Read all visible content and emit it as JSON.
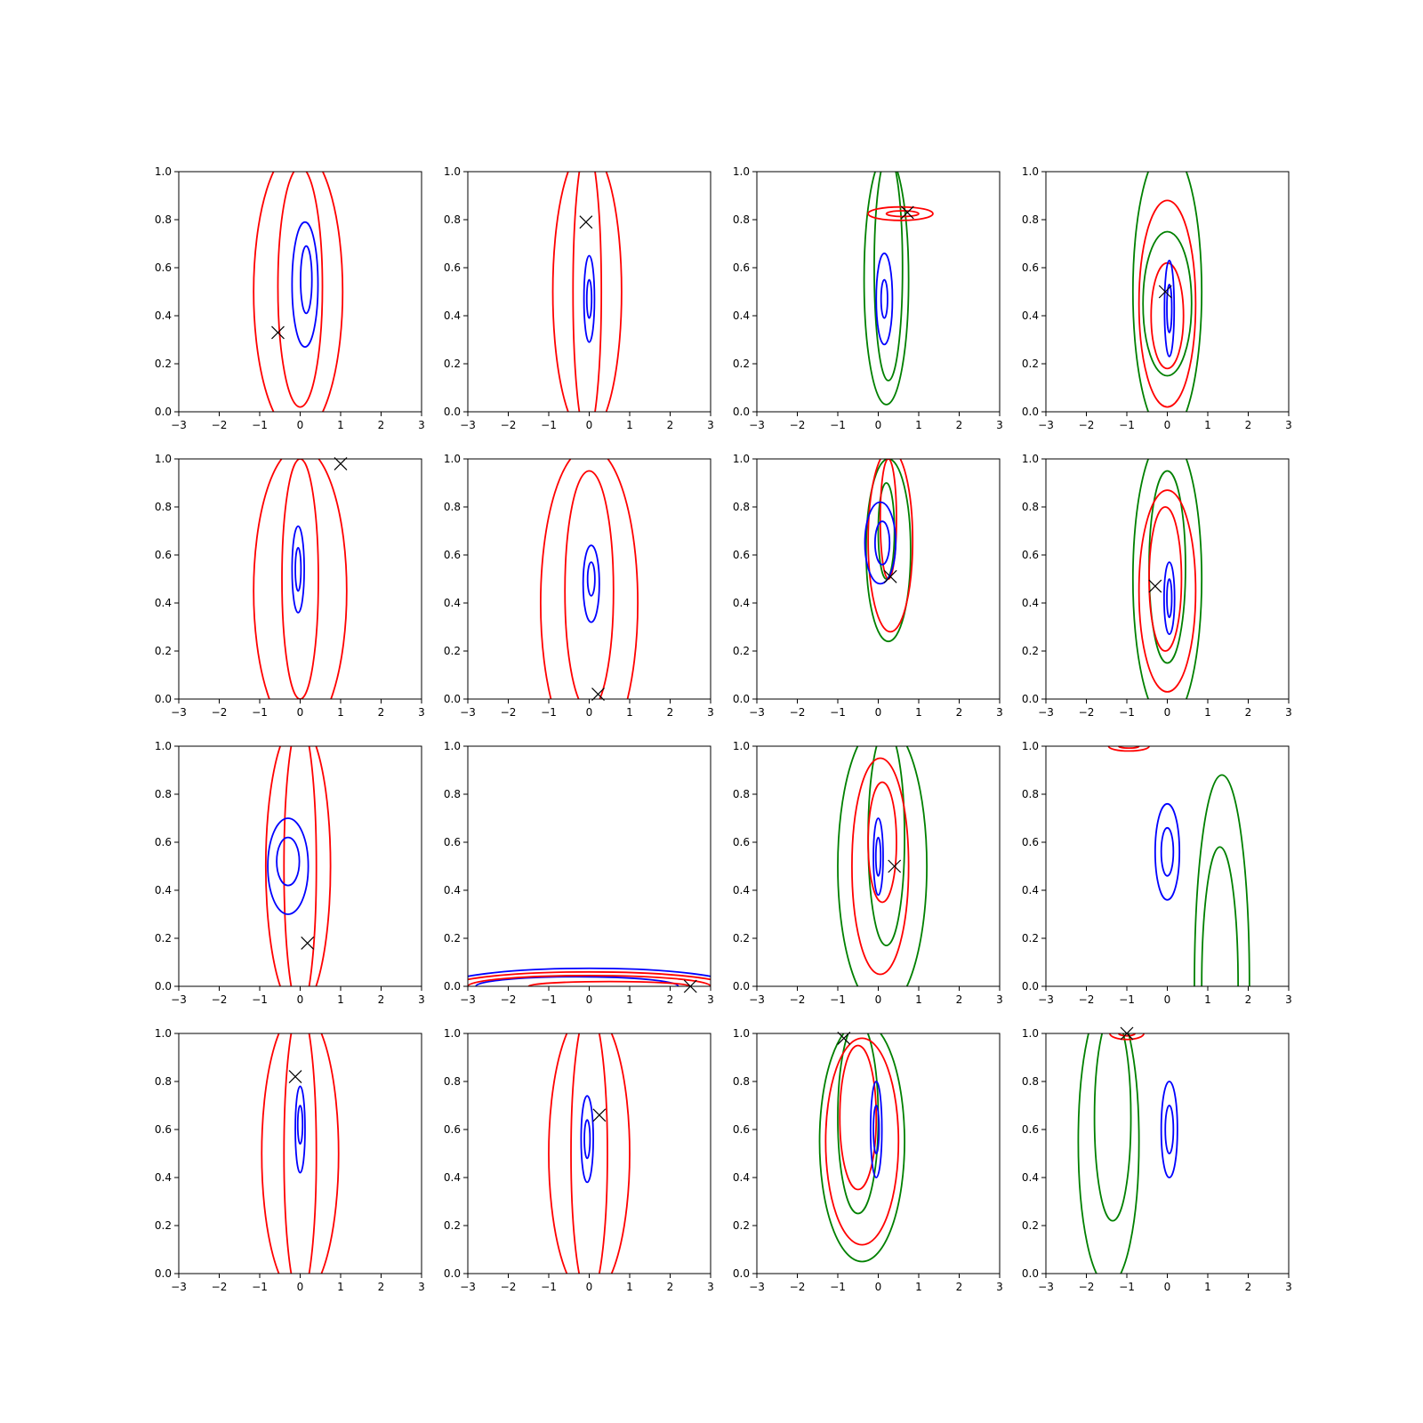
{
  "chart_data": {
    "type": "contour",
    "layout": {
      "rows": 4,
      "cols": 4
    },
    "x_range": [
      -3,
      3
    ],
    "y_range": [
      0,
      1
    ],
    "x_ticks": [
      -3,
      -2,
      -1,
      0,
      1,
      2,
      3
    ],
    "y_ticks": [
      0.0,
      0.2,
      0.4,
      0.6,
      0.8,
      1.0
    ],
    "x_tick_labels": [
      "−3",
      "−2",
      "−1",
      "0",
      "1",
      "2",
      "3"
    ],
    "y_tick_labels": [
      "0.0",
      "0.2",
      "0.4",
      "0.6",
      "0.8",
      "1.0"
    ],
    "colors": {
      "blue": "#0000ff",
      "red": "#ff0000",
      "green": "#008000",
      "marker": "#000000"
    },
    "panels": [
      {
        "marker": [
          -0.55,
          0.33
        ],
        "contours": [
          {
            "color": "red",
            "cx": -0.05,
            "cy": 0.5,
            "rx": 1.1,
            "ry": 0.6
          },
          {
            "color": "red",
            "cx": 0.0,
            "cy": 0.52,
            "rx": 0.55,
            "ry": 0.5
          },
          {
            "color": "blue",
            "cx": 0.12,
            "cy": 0.53,
            "rx": 0.32,
            "ry": 0.26
          },
          {
            "color": "blue",
            "cx": 0.15,
            "cy": 0.55,
            "rx": 0.14,
            "ry": 0.14
          }
        ]
      },
      {
        "marker": [
          -0.08,
          0.79
        ],
        "contours": [
          {
            "color": "red",
            "cx": -0.05,
            "cy": 0.5,
            "rx": 0.85,
            "ry": 0.6
          },
          {
            "color": "red",
            "cx": -0.05,
            "cy": 0.5,
            "rx": 0.35,
            "ry": 0.6
          },
          {
            "color": "blue",
            "cx": 0.0,
            "cy": 0.47,
            "rx": 0.13,
            "ry": 0.18
          },
          {
            "color": "blue",
            "cx": 0.0,
            "cy": 0.47,
            "rx": 0.06,
            "ry": 0.08
          }
        ]
      },
      {
        "marker": [
          0.72,
          0.83
        ],
        "contours": [
          {
            "color": "green",
            "cx": 0.2,
            "cy": 0.55,
            "rx": 0.55,
            "ry": 0.52
          },
          {
            "color": "green",
            "cx": 0.25,
            "cy": 0.6,
            "rx": 0.35,
            "ry": 0.47
          },
          {
            "color": "blue",
            "cx": 0.15,
            "cy": 0.47,
            "rx": 0.2,
            "ry": 0.19
          },
          {
            "color": "blue",
            "cx": 0.15,
            "cy": 0.47,
            "rx": 0.08,
            "ry": 0.08
          },
          {
            "color": "red",
            "cx": 0.55,
            "cy": 0.825,
            "rx": 0.8,
            "ry": 0.028
          },
          {
            "color": "red",
            "cx": 0.6,
            "cy": 0.825,
            "rx": 0.4,
            "ry": 0.012
          }
        ]
      },
      {
        "marker": [
          -0.05,
          0.5
        ],
        "contours": [
          {
            "color": "green",
            "cx": 0.0,
            "cy": 0.5,
            "rx": 0.85,
            "ry": 0.6
          },
          {
            "color": "green",
            "cx": 0.0,
            "cy": 0.45,
            "rx": 0.6,
            "ry": 0.3
          },
          {
            "color": "red",
            "cx": 0.0,
            "cy": 0.45,
            "rx": 0.7,
            "ry": 0.43
          },
          {
            "color": "red",
            "cx": 0.0,
            "cy": 0.4,
            "rx": 0.4,
            "ry": 0.22
          },
          {
            "color": "blue",
            "cx": 0.05,
            "cy": 0.43,
            "rx": 0.12,
            "ry": 0.2
          },
          {
            "color": "blue",
            "cx": 0.05,
            "cy": 0.43,
            "rx": 0.06,
            "ry": 0.1
          }
        ]
      },
      {
        "marker": [
          1.0,
          0.98
        ],
        "contours": [
          {
            "color": "red",
            "cx": 0.0,
            "cy": 0.45,
            "rx": 1.15,
            "ry": 0.6
          },
          {
            "color": "red",
            "cx": 0.0,
            "cy": 0.5,
            "rx": 0.45,
            "ry": 0.5
          },
          {
            "color": "blue",
            "cx": -0.05,
            "cy": 0.54,
            "rx": 0.15,
            "ry": 0.18
          },
          {
            "color": "blue",
            "cx": -0.05,
            "cy": 0.54,
            "rx": 0.07,
            "ry": 0.09
          }
        ]
      },
      {
        "marker": [
          0.22,
          0.02
        ],
        "contours": [
          {
            "color": "red",
            "cx": 0.0,
            "cy": 0.4,
            "rx": 1.2,
            "ry": 0.65
          },
          {
            "color": "red",
            "cx": 0.0,
            "cy": 0.45,
            "rx": 0.6,
            "ry": 0.5
          },
          {
            "color": "blue",
            "cx": 0.05,
            "cy": 0.48,
            "rx": 0.2,
            "ry": 0.16
          },
          {
            "color": "blue",
            "cx": 0.05,
            "cy": 0.5,
            "rx": 0.09,
            "ry": 0.07
          }
        ]
      },
      {
        "marker": [
          0.3,
          0.51
        ],
        "contours": [
          {
            "color": "green",
            "cx": 0.25,
            "cy": 0.62,
            "rx": 0.55,
            "ry": 0.38
          },
          {
            "color": "green",
            "cx": 0.2,
            "cy": 0.7,
            "rx": 0.2,
            "ry": 0.2
          },
          {
            "color": "red",
            "cx": 0.3,
            "cy": 0.66,
            "rx": 0.55,
            "ry": 0.38
          },
          {
            "color": "red",
            "cx": 0.25,
            "cy": 0.75,
            "rx": 0.2,
            "ry": 0.25
          },
          {
            "color": "blue",
            "cx": 0.05,
            "cy": 0.65,
            "rx": 0.38,
            "ry": 0.17
          },
          {
            "color": "blue",
            "cx": 0.1,
            "cy": 0.65,
            "rx": 0.18,
            "ry": 0.09
          }
        ]
      },
      {
        "marker": [
          -0.3,
          0.47
        ],
        "contours": [
          {
            "color": "green",
            "cx": 0.0,
            "cy": 0.5,
            "rx": 0.85,
            "ry": 0.6
          },
          {
            "color": "green",
            "cx": 0.0,
            "cy": 0.55,
            "rx": 0.45,
            "ry": 0.4
          },
          {
            "color": "red",
            "cx": 0.0,
            "cy": 0.45,
            "rx": 0.7,
            "ry": 0.42
          },
          {
            "color": "red",
            "cx": -0.05,
            "cy": 0.5,
            "rx": 0.4,
            "ry": 0.3
          },
          {
            "color": "blue",
            "cx": 0.05,
            "cy": 0.42,
            "rx": 0.13,
            "ry": 0.15
          },
          {
            "color": "blue",
            "cx": 0.05,
            "cy": 0.42,
            "rx": 0.06,
            "ry": 0.08
          }
        ]
      },
      {
        "marker": [
          0.18,
          0.18
        ],
        "contours": [
          {
            "color": "red",
            "cx": -0.05,
            "cy": 0.5,
            "rx": 0.8,
            "ry": 0.6
          },
          {
            "color": "red",
            "cx": 0.0,
            "cy": 0.5,
            "rx": 0.4,
            "ry": 0.6
          },
          {
            "color": "blue",
            "cx": -0.3,
            "cy": 0.5,
            "rx": 0.5,
            "ry": 0.2
          },
          {
            "color": "blue",
            "cx": -0.3,
            "cy": 0.52,
            "rx": 0.28,
            "ry": 0.1
          }
        ]
      },
      {
        "marker": [
          2.5,
          0.0
        ],
        "contours": [
          {
            "color": "blue",
            "cx": 0.0,
            "cy": 0.0,
            "rx": 3.6,
            "ry": 0.075
          },
          {
            "color": "blue",
            "cx": -0.3,
            "cy": 0.0,
            "rx": 2.5,
            "ry": 0.04
          },
          {
            "color": "red",
            "cx": 0.0,
            "cy": 0.0,
            "rx": 3.4,
            "ry": 0.06
          },
          {
            "color": "red",
            "cx": 0.0,
            "cy": 0.0,
            "rx": 3.0,
            "ry": 0.045
          },
          {
            "color": "red",
            "cx": 0.5,
            "cy": 0.0,
            "rx": 2.0,
            "ry": 0.02
          }
        ]
      },
      {
        "marker": [
          0.4,
          0.5
        ],
        "contours": [
          {
            "color": "green",
            "cx": 0.1,
            "cy": 0.5,
            "rx": 1.1,
            "ry": 0.6
          },
          {
            "color": "green",
            "cx": 0.2,
            "cy": 0.62,
            "rx": 0.45,
            "ry": 0.45
          },
          {
            "color": "red",
            "cx": 0.05,
            "cy": 0.5,
            "rx": 0.7,
            "ry": 0.45
          },
          {
            "color": "red",
            "cx": 0.1,
            "cy": 0.6,
            "rx": 0.35,
            "ry": 0.25
          },
          {
            "color": "blue",
            "cx": 0.0,
            "cy": 0.54,
            "rx": 0.12,
            "ry": 0.16
          },
          {
            "color": "blue",
            "cx": 0.0,
            "cy": 0.54,
            "rx": 0.06,
            "ry": 0.08
          }
        ]
      },
      {
        "marker": null,
        "contours": [
          {
            "color": "blue",
            "cx": 0.0,
            "cy": 0.56,
            "rx": 0.3,
            "ry": 0.2
          },
          {
            "color": "blue",
            "cx": 0.0,
            "cy": 0.56,
            "rx": 0.15,
            "ry": 0.1
          },
          {
            "color": "red",
            "cx": -0.95,
            "cy": 1.0,
            "rx": 0.5,
            "ry": 0.02
          },
          {
            "color": "red",
            "cx": -0.95,
            "cy": 1.0,
            "rx": 0.25,
            "ry": 0.008
          },
          {
            "color": "green",
            "cx": 1.35,
            "cy": 0.0,
            "rx": 0.68,
            "ry": 0.88
          },
          {
            "color": "green",
            "cx": 1.3,
            "cy": 0.0,
            "rx": 0.45,
            "ry": 0.58
          }
        ]
      },
      {
        "marker": [
          -0.12,
          0.82
        ],
        "contours": [
          {
            "color": "red",
            "cx": 0.0,
            "cy": 0.5,
            "rx": 0.95,
            "ry": 0.6
          },
          {
            "color": "red",
            "cx": 0.0,
            "cy": 0.5,
            "rx": 0.4,
            "ry": 0.6
          },
          {
            "color": "blue",
            "cx": 0.0,
            "cy": 0.6,
            "rx": 0.12,
            "ry": 0.18
          },
          {
            "color": "blue",
            "cx": 0.0,
            "cy": 0.62,
            "rx": 0.06,
            "ry": 0.08
          }
        ]
      },
      {
        "marker": [
          0.25,
          0.66
        ],
        "contours": [
          {
            "color": "red",
            "cx": 0.0,
            "cy": 0.5,
            "rx": 1.0,
            "ry": 0.6
          },
          {
            "color": "red",
            "cx": 0.0,
            "cy": 0.5,
            "rx": 0.45,
            "ry": 0.6
          },
          {
            "color": "blue",
            "cx": -0.05,
            "cy": 0.56,
            "rx": 0.15,
            "ry": 0.18
          },
          {
            "color": "blue",
            "cx": -0.05,
            "cy": 0.56,
            "rx": 0.07,
            "ry": 0.08
          }
        ]
      },
      {
        "marker": [
          -0.85,
          0.98
        ],
        "contours": [
          {
            "color": "green",
            "cx": -0.4,
            "cy": 0.55,
            "rx": 1.05,
            "ry": 0.5
          },
          {
            "color": "green",
            "cx": -0.5,
            "cy": 0.65,
            "rx": 0.5,
            "ry": 0.4
          },
          {
            "color": "red",
            "cx": -0.4,
            "cy": 0.55,
            "rx": 0.9,
            "ry": 0.43
          },
          {
            "color": "red",
            "cx": -0.5,
            "cy": 0.65,
            "rx": 0.45,
            "ry": 0.3
          },
          {
            "color": "blue",
            "cx": -0.05,
            "cy": 0.6,
            "rx": 0.14,
            "ry": 0.2
          },
          {
            "color": "blue",
            "cx": -0.05,
            "cy": 0.6,
            "rx": 0.07,
            "ry": 0.1
          }
        ]
      },
      {
        "marker": [
          -1.0,
          1.0
        ],
        "contours": [
          {
            "color": "green",
            "cx": -1.45,
            "cy": 0.55,
            "rx": 0.75,
            "ry": 0.6
          },
          {
            "color": "green",
            "cx": -1.35,
            "cy": 0.65,
            "rx": 0.45,
            "ry": 0.43
          },
          {
            "color": "blue",
            "cx": 0.05,
            "cy": 0.6,
            "rx": 0.2,
            "ry": 0.2
          },
          {
            "color": "blue",
            "cx": 0.05,
            "cy": 0.6,
            "rx": 0.1,
            "ry": 0.1
          },
          {
            "color": "red",
            "cx": -1.0,
            "cy": 1.0,
            "rx": 0.42,
            "ry": 0.025
          },
          {
            "color": "red",
            "cx": -1.0,
            "cy": 1.0,
            "rx": 0.2,
            "ry": 0.01
          }
        ]
      }
    ]
  }
}
